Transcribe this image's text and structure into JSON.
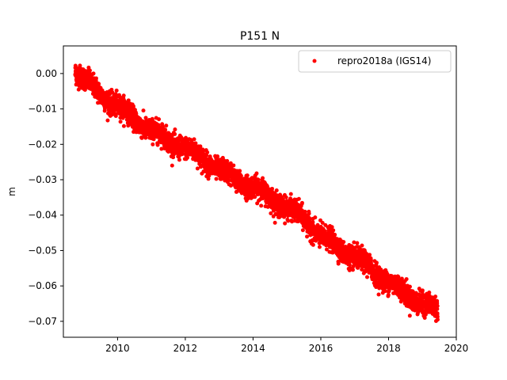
{
  "chart_data": {
    "type": "scatter",
    "title": "P151 N",
    "xlabel": "",
    "ylabel": "m",
    "xlim": [
      2008.4,
      2020.0
    ],
    "ylim": [
      -0.0745,
      0.0078
    ],
    "xticks": [
      2010,
      2012,
      2014,
      2016,
      2018,
      2020
    ],
    "xtick_labels": [
      "2010",
      "2012",
      "2014",
      "2016",
      "2018",
      "2020"
    ],
    "yticks": [
      0.0,
      -0.01,
      -0.02,
      -0.03,
      -0.04,
      -0.05,
      -0.06,
      -0.07
    ],
    "ytick_labels": [
      "0.00",
      "−0.01",
      "−0.02",
      "−0.03",
      "−0.04",
      "−0.05",
      "−0.06",
      "−0.07"
    ],
    "grid": false,
    "legend_position": "upper right",
    "series": [
      {
        "name": "repro2018a (IGS14)",
        "color": "#ff0000",
        "marker": "circle",
        "x_start": 2008.75,
        "x_end": 2019.45,
        "trend_points": {
          "x": [
            2008.75,
            2009.5,
            2010.0,
            2010.5,
            2011.0,
            2011.5,
            2012.0,
            2012.5,
            2013.0,
            2013.5,
            2014.0,
            2014.5,
            2015.0,
            2015.5,
            2016.0,
            2016.5,
            2017.0,
            2017.5,
            2018.0,
            2018.5,
            2019.0,
            2019.45
          ],
          "y": [
            0.001,
            -0.006,
            -0.009,
            -0.013,
            -0.016,
            -0.019,
            -0.021,
            -0.024,
            -0.027,
            -0.03,
            -0.032,
            -0.035,
            -0.038,
            -0.041,
            -0.046,
            -0.049,
            -0.052,
            -0.055,
            -0.059,
            -0.062,
            -0.065,
            -0.067
          ]
        },
        "scatter_spread": 0.0015
      }
    ]
  }
}
